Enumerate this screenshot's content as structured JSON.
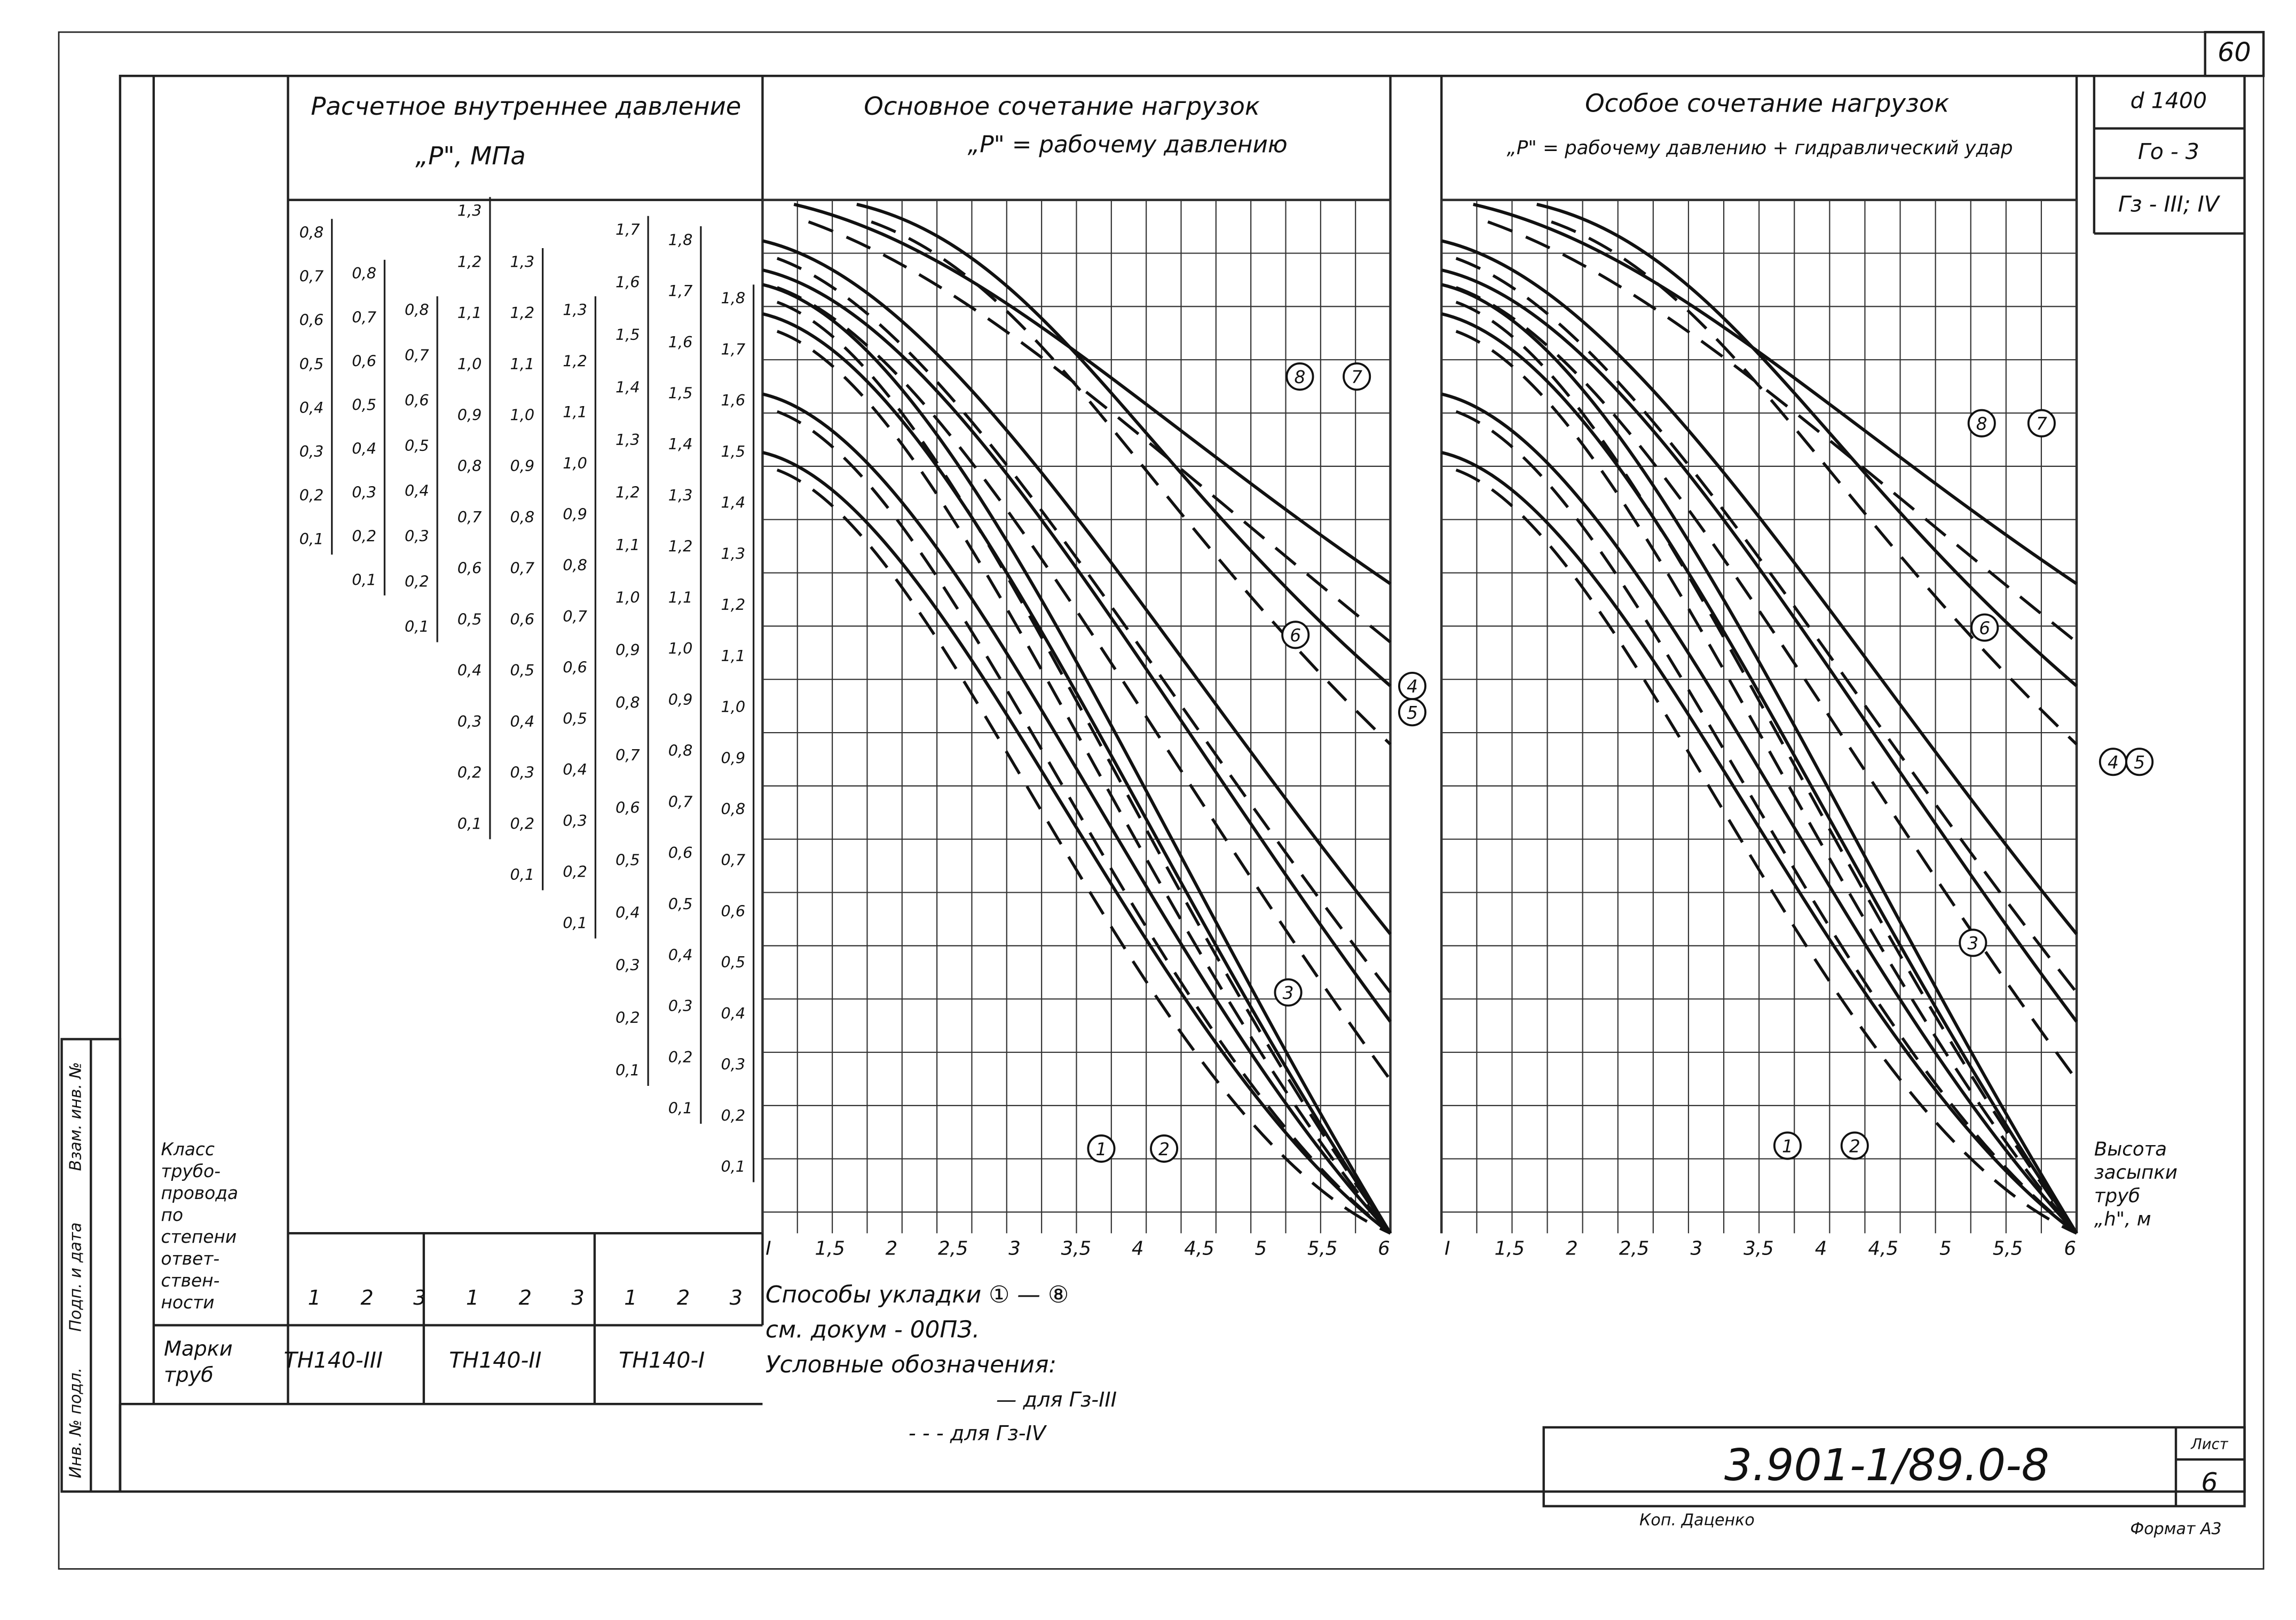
{
  "page_number": "60",
  "header": {
    "scale_title": "Расчетное внутреннее давление",
    "scale_unit": "„P\", МПа",
    "main_title": "Основное сочетание нагрузок",
    "main_subtitle": "„P\" = рабочему давлению",
    "special_title": "Особое сочетание нагрузок",
    "special_subtitle": "„P\" = рабочему давлению + гидравлический удар"
  },
  "stamp": [
    "d 1400",
    "Го - 3",
    "Гз - III; IV"
  ],
  "scales": [
    {
      "ticks": [
        "0,8",
        "0,7",
        "0,6",
        "0,5",
        "0,4",
        "0,3",
        "0,2",
        "0,1"
      ]
    },
    {
      "ticks": [
        "0,8",
        "0,7",
        "0,6",
        "0,5",
        "0,4",
        "0,3",
        "0,2",
        "0,1"
      ]
    },
    {
      "ticks": [
        "0,8",
        "0,7",
        "0,6",
        "0,5",
        "0,4",
        "0,3",
        "0,2",
        "0,1"
      ]
    },
    {
      "ticks": [
        "1,3",
        "1,2",
        "1,1",
        "1,0",
        "0,9",
        "0,8",
        "0,7",
        "0,6",
        "0,5",
        "0,4",
        "0,3",
        "0,2",
        "0,1"
      ]
    },
    {
      "ticks": [
        "1,3",
        "1,2",
        "1,1",
        "1,0",
        "0,9",
        "0,8",
        "0,7",
        "0,6",
        "0,5",
        "0,4",
        "0,3",
        "0,2",
        "0,1"
      ]
    },
    {
      "ticks": [
        "1,3",
        "1,2",
        "1,1",
        "1,0",
        "0,9",
        "0,8",
        "0,7",
        "0,6",
        "0,5",
        "0,4",
        "0,3",
        "0,2",
        "0,1"
      ]
    },
    {
      "ticks": [
        "1,7",
        "1,6",
        "1,5",
        "1,4",
        "1,3",
        "1,2",
        "1,1",
        "1,0",
        "0,9",
        "0,8",
        "0,7",
        "0,6",
        "0,5",
        "0,4",
        "0,3",
        "0,2",
        "0,1"
      ]
    },
    {
      "ticks": [
        "1,8",
        "1,7",
        "1,6",
        "1,5",
        "1,4",
        "1,3",
        "1,2",
        "1,1",
        "1,0",
        "0,9",
        "0,8",
        "0,7",
        "0,6",
        "0,5",
        "0,4",
        "0,3",
        "0,2",
        "0,1"
      ]
    },
    {
      "ticks": [
        "1,8",
        "1,7",
        "1,6",
        "1,5",
        "1,4",
        "1,3",
        "1,2",
        "1,1",
        "1,0",
        "0,9",
        "0,8",
        "0,7",
        "0,6",
        "0,5",
        "0,4",
        "0,3",
        "0,2",
        "0,1"
      ]
    }
  ],
  "class_label": [
    "Класс",
    "трубо-",
    "провода",
    "по",
    "степени",
    "ответ-",
    "ствен-",
    "ности"
  ],
  "classes": [
    "1",
    "2",
    "3",
    "1",
    "2",
    "3",
    "1",
    "2",
    "3"
  ],
  "marks_label": [
    "Марки",
    "труб"
  ],
  "marks": [
    "ТН140-III",
    "ТН140-II",
    "ТН140-I"
  ],
  "x_ticks": [
    "I",
    "1,5",
    "2",
    "2,5",
    "3",
    "3,5",
    "4",
    "4,5",
    "5",
    "5,5",
    "6"
  ],
  "x_axis_label": [
    "Высота",
    "засыпки",
    "труб",
    "„h\", м"
  ],
  "charts": [
    {
      "markers": [
        "8",
        "7",
        "6",
        "4",
        "5",
        "3",
        "1",
        "2"
      ]
    },
    {
      "markers": [
        "8",
        "7",
        "6",
        "4",
        "5",
        "3",
        "1",
        "2"
      ]
    }
  ],
  "legend": {
    "methods": "Способы укладки ① — ⑧",
    "reference": "см. докум - 00ПЗ.",
    "title": "Условные обозначения:",
    "solid": "— для Гз-III",
    "dashed": "- - - для Гз-IV"
  },
  "side_stamp": [
    "Инв. № подл.",
    "Подп. и дата",
    "Взам. инв. №"
  ],
  "doc_number": "3.901-1/89.0-8",
  "sheet_label": "Лист",
  "sheet": "6",
  "copied_by": "Коп. Даценко",
  "format": "Формат А3"
}
